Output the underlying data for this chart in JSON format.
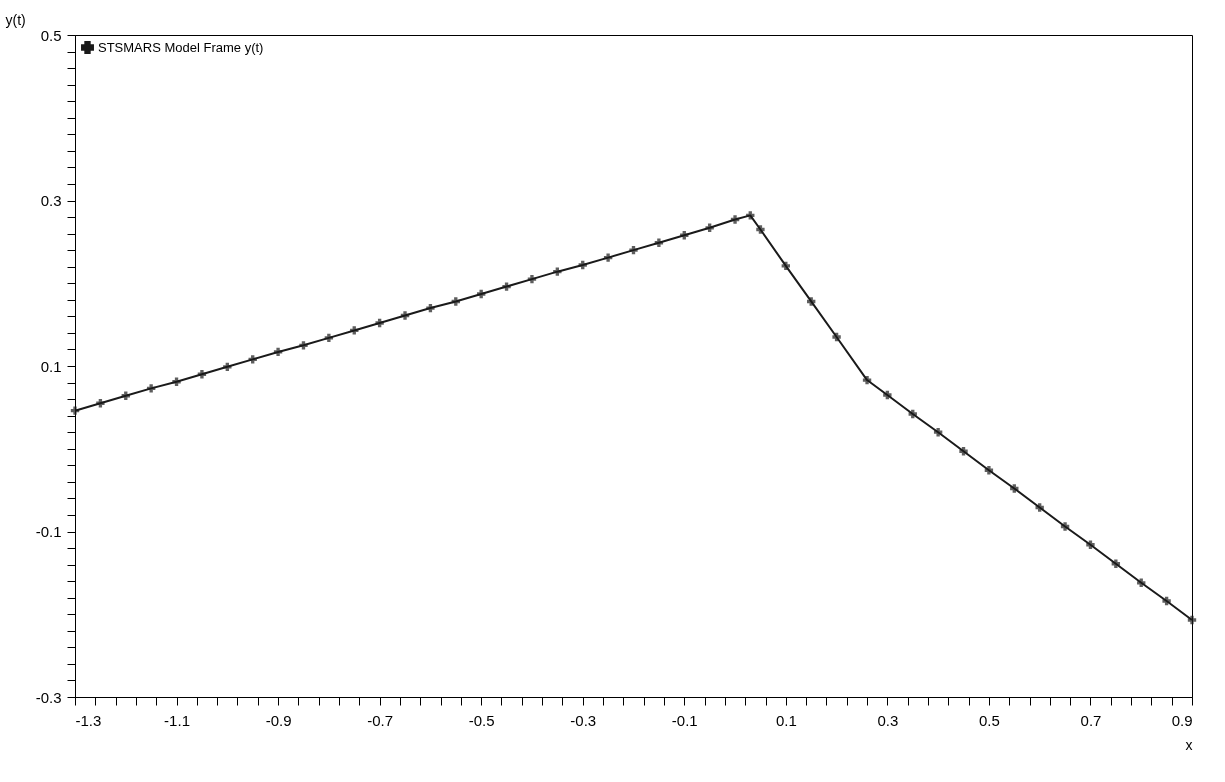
{
  "chart_data": {
    "type": "line",
    "xlabel": "x",
    "ylabel": "y(t)",
    "legend": "top left",
    "marker": "cross",
    "line_style": "solid",
    "grid": false,
    "x": [
      -1.3,
      -1.25,
      -1.2,
      -1.15,
      -1.1,
      -1.05,
      -1.0,
      -0.95,
      -0.9,
      -0.85,
      -0.8,
      -0.75,
      -0.7,
      -0.65,
      -0.6,
      -0.55,
      -0.5,
      -0.45,
      -0.4,
      -0.35,
      -0.3,
      -0.25,
      -0.2,
      -0.15,
      -0.1,
      -0.05,
      0,
      0.03,
      0.05,
      0.1,
      0.15,
      0.2,
      0.26,
      0.3,
      0.35,
      0.4,
      0.45,
      0.5,
      0.55,
      0.6,
      0.65,
      0.7,
      0.75,
      0.8,
      0.85,
      0.9
    ],
    "series": [
      {
        "name": "STSMARS Model Frame y(t)",
        "color": "#1a1a1a",
        "values": [
          0.046,
          0.055,
          0.064,
          0.073,
          0.081,
          0.09,
          0.099,
          0.108,
          0.117,
          0.125,
          0.134,
          0.143,
          0.152,
          0.161,
          0.17,
          0.178,
          0.187,
          0.196,
          0.205,
          0.214,
          0.222,
          0.231,
          0.24,
          0.249,
          0.258,
          0.267,
          0.277,
          0.282,
          0.265,
          0.221,
          0.178,
          0.135,
          0.083,
          0.065,
          0.042,
          0.02,
          -0.003,
          -0.026,
          -0.048,
          -0.071,
          -0.094,
          -0.116,
          -0.139,
          -0.162,
          -0.184,
          -0.207
        ]
      }
    ],
    "xlim": [
      -1.3,
      0.9
    ],
    "xticks": [
      -1.3,
      {
        "value": -1.26,
        "label": null
      },
      {
        "value": -1.22,
        "label": null
      },
      {
        "value": -1.18,
        "label": null
      },
      {
        "value": -1.14,
        "label": null
      },
      -1.1,
      {
        "value": -1.06,
        "label": null
      },
      {
        "value": -1.02,
        "label": null
      },
      {
        "value": -0.98,
        "label": null
      },
      {
        "value": -0.94,
        "label": null
      },
      -0.9,
      {
        "value": -0.86,
        "label": null
      },
      {
        "value": -0.82,
        "label": null
      },
      {
        "value": -0.78,
        "label": null
      },
      {
        "value": -0.74,
        "label": null
      },
      -0.7,
      {
        "value": -0.66,
        "label": null
      },
      {
        "value": -0.62,
        "label": null
      },
      {
        "value": -0.58,
        "label": null
      },
      {
        "value": -0.54,
        "label": null
      },
      -0.5,
      {
        "value": -0.46,
        "label": null
      },
      {
        "value": -0.42,
        "label": null
      },
      {
        "value": -0.38,
        "label": null
      },
      {
        "value": -0.34,
        "label": null
      },
      -0.3,
      {
        "value": -0.26,
        "label": null
      },
      {
        "value": -0.22,
        "label": null
      },
      {
        "value": -0.18,
        "label": null
      },
      {
        "value": -0.14,
        "label": null
      },
      -0.1,
      {
        "value": -0.06,
        "label": null
      },
      {
        "value": -0.02,
        "label": null
      },
      {
        "value": 0.02,
        "label": null
      },
      {
        "value": 0.06,
        "label": null
      },
      0.1,
      {
        "value": 0.14,
        "label": null
      },
      {
        "value": 0.18,
        "label": null
      },
      {
        "value": 0.22,
        "label": null
      },
      {
        "value": 0.26,
        "label": null
      },
      0.3,
      {
        "value": 0.34,
        "label": null
      },
      {
        "value": 0.38,
        "label": null
      },
      {
        "value": 0.42,
        "label": null
      },
      {
        "value": 0.46,
        "label": null
      },
      0.5,
      {
        "value": 0.54,
        "label": null
      },
      {
        "value": 0.58,
        "label": null
      },
      {
        "value": 0.62,
        "label": null
      },
      {
        "value": 0.66,
        "label": null
      },
      0.7,
      {
        "value": 0.74,
        "label": null
      },
      {
        "value": 0.78,
        "label": null
      },
      {
        "value": 0.82,
        "label": null
      },
      {
        "value": 0.86,
        "label": null
      },
      0.9
    ],
    "ylim": [
      -0.3,
      0.5
    ],
    "yticks": [
      -0.3,
      {
        "value": -0.28,
        "label": null
      },
      {
        "value": -0.26,
        "label": null
      },
      {
        "value": -0.24,
        "label": null
      },
      {
        "value": -0.22,
        "label": null
      },
      {
        "value": -0.2,
        "label": null
      },
      {
        "value": -0.18,
        "label": null
      },
      {
        "value": -0.16,
        "label": null
      },
      {
        "value": -0.14,
        "label": null
      },
      {
        "value": -0.12,
        "label": null
      },
      -0.1,
      {
        "value": -0.08,
        "label": null
      },
      {
        "value": -0.06,
        "label": null
      },
      {
        "value": -0.04,
        "label": null
      },
      {
        "value": -0.02,
        "label": null
      },
      {
        "value": 0,
        "label": null
      },
      {
        "value": 0.02,
        "label": null
      },
      {
        "value": 0.04,
        "label": null
      },
      {
        "value": 0.06,
        "label": null
      },
      {
        "value": 0.08,
        "label": null
      },
      0.1,
      {
        "value": 0.12,
        "label": null
      },
      {
        "value": 0.14,
        "label": null
      },
      {
        "value": 0.16,
        "label": null
      },
      {
        "value": 0.18,
        "label": null
      },
      {
        "value": 0.2,
        "label": null
      },
      {
        "value": 0.22,
        "label": null
      },
      {
        "value": 0.24,
        "label": null
      },
      {
        "value": 0.26,
        "label": null
      },
      {
        "value": 0.28,
        "label": null
      },
      0.3,
      {
        "value": 0.32,
        "label": null
      },
      {
        "value": 0.34,
        "label": null
      },
      {
        "value": 0.36,
        "label": null
      },
      {
        "value": 0.38,
        "label": null
      },
      {
        "value": 0.4,
        "label": null
      },
      {
        "value": 0.42,
        "label": null
      },
      {
        "value": 0.44,
        "label": null
      },
      {
        "value": 0.46,
        "label": null
      },
      {
        "value": 0.48,
        "label": null
      },
      0.5
    ]
  }
}
